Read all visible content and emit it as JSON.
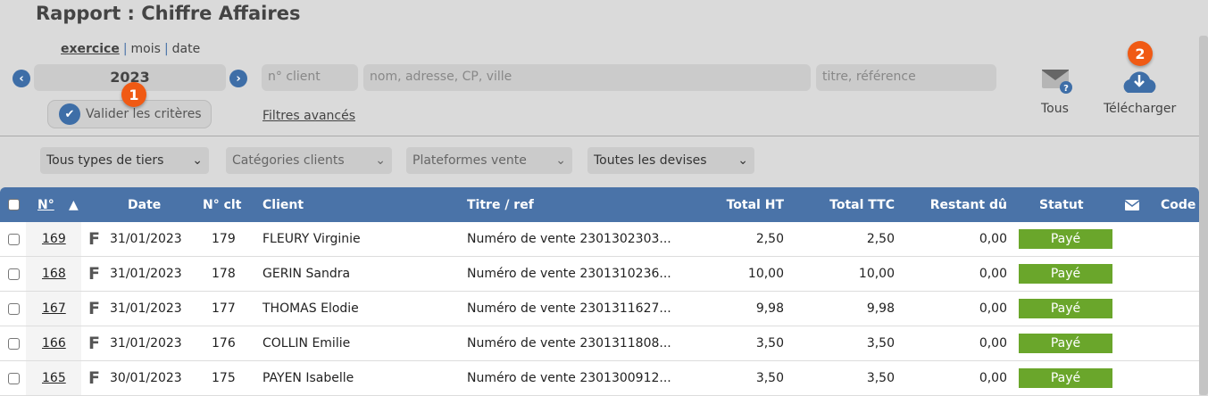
{
  "title": "Rapport : Chiffre Affaires",
  "period": {
    "options": [
      "exercice",
      "mois",
      "date"
    ],
    "selected": "exercice"
  },
  "year": "2023",
  "inputs": {
    "client_no": "n° client",
    "name": "nom, adresse, CP, ville",
    "title": "titre, référence"
  },
  "validate_label": "Valider les critères",
  "advanced_filters": "Filtres avancés",
  "badges": [
    "1",
    "2"
  ],
  "actions": {
    "tous": "Tous",
    "download": "Télécharger"
  },
  "selects": [
    "Tous types de tiers",
    "Catégories clients",
    "Plateformes vente",
    "Toutes les devises"
  ],
  "columns": {
    "no": "N°",
    "sort": "▲",
    "date": "Date",
    "clt": "N° clt",
    "client": "Client",
    "titre": "Titre / ref",
    "ht": "Total HT",
    "ttc": "Total TTC",
    "restant": "Restant dû",
    "statut": "Statut",
    "code": "Code"
  },
  "rows": [
    {
      "no": "169",
      "type": "F",
      "date": "31/01/2023",
      "clt": "179",
      "client": "FLEURY Virginie",
      "titre": "Numéro de vente 2301302303...",
      "ht": "2,50",
      "ttc": "2,50",
      "restant": "0,00",
      "statut": "Payé"
    },
    {
      "no": "168",
      "type": "F",
      "date": "31/01/2023",
      "clt": "178",
      "client": "GERIN Sandra",
      "titre": "Numéro de vente 2301310236...",
      "ht": "10,00",
      "ttc": "10,00",
      "restant": "0,00",
      "statut": "Payé"
    },
    {
      "no": "167",
      "type": "F",
      "date": "31/01/2023",
      "clt": "177",
      "client": "THOMAS Elodie",
      "titre": "Numéro de vente 2301311627...",
      "ht": "9,98",
      "ttc": "9,98",
      "restant": "0,00",
      "statut": "Payé"
    },
    {
      "no": "166",
      "type": "F",
      "date": "31/01/2023",
      "clt": "176",
      "client": "COLLIN Emilie",
      "titre": "Numéro de vente 2301311808...",
      "ht": "3,50",
      "ttc": "3,50",
      "restant": "0,00",
      "statut": "Payé"
    },
    {
      "no": "165",
      "type": "F",
      "date": "30/01/2023",
      "clt": "175",
      "client": "PAYEN Isabelle",
      "titre": "Numéro de vente 2301300912...",
      "ht": "3,50",
      "ttc": "3,50",
      "restant": "0,00",
      "statut": "Payé"
    }
  ],
  "colors": {
    "accent": "#4a73a8",
    "paid": "#6aa62b",
    "badge": "#f05a14"
  }
}
